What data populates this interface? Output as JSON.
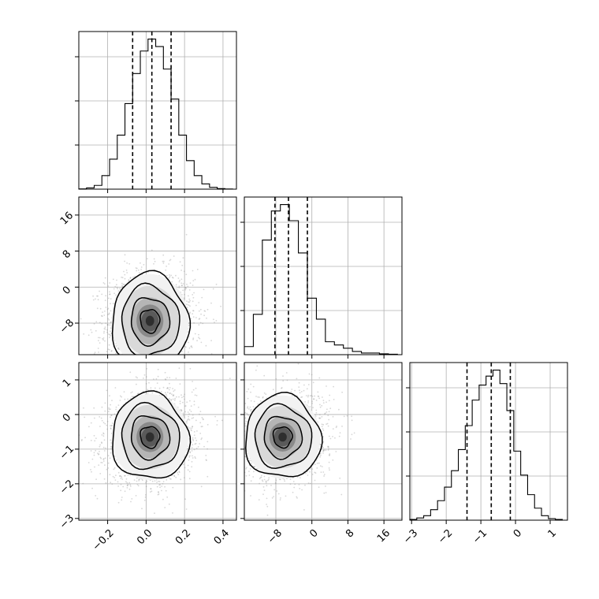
{
  "chart_data": {
    "type": "corner",
    "grid": true,
    "parameters": [
      {
        "index": 0,
        "range": [
          -0.35,
          0.47
        ],
        "ticks": [
          -0.2,
          0.0,
          0.2,
          0.4
        ],
        "tick_labels": [
          "−0.2",
          "0.0",
          "0.2",
          "0.4"
        ]
      },
      {
        "index": 1,
        "range": [
          -15,
          20
        ],
        "ticks": [
          -8,
          0,
          8,
          16
        ],
        "tick_labels": [
          "−8",
          "0",
          "8",
          "16"
        ]
      },
      {
        "index": 2,
        "range": [
          -3.05,
          1.5
        ],
        "ticks": [
          -3,
          -2,
          -1,
          0,
          1
        ],
        "tick_labels": [
          "−3",
          "−2",
          "−1",
          "0",
          "1"
        ]
      }
    ],
    "histograms": [
      {
        "param": 0,
        "edges": [
          -0.35,
          -0.31,
          -0.27,
          -0.23,
          -0.19,
          -0.15,
          -0.11,
          -0.07,
          -0.03,
          0.01,
          0.05,
          0.09,
          0.13,
          0.17,
          0.21,
          0.25,
          0.29,
          0.33,
          0.37,
          0.41,
          0.45
        ],
        "counts": [
          0.2,
          0.8,
          2.5,
          9,
          20,
          36,
          57,
          77,
          92,
          100,
          95,
          80,
          60,
          36,
          19,
          9,
          3.5,
          1.2,
          0.4,
          0.1
        ],
        "quantiles": [
          -0.07,
          0.03,
          0.13
        ]
      },
      {
        "param": 1,
        "edges": [
          -15,
          -13,
          -11,
          -9,
          -7,
          -5,
          -3,
          -1,
          1,
          3,
          5,
          7,
          9,
          11,
          13,
          15,
          17,
          19
        ],
        "counts": [
          5,
          25,
          71,
          89,
          93,
          83,
          63,
          35,
          22,
          8,
          6,
          4,
          2,
          1,
          1,
          0.5,
          0.3,
          0.1
        ],
        "quantiles": [
          -8.2,
          -5.2,
          -1.0
        ]
      },
      {
        "param": 2,
        "edges": [
          -3.05,
          -2.85,
          -2.65,
          -2.45,
          -2.25,
          -2.05,
          -1.85,
          -1.65,
          -1.45,
          -1.25,
          -1.05,
          -0.85,
          -0.65,
          -0.45,
          -0.25,
          -0.05,
          0.15,
          0.35,
          0.55,
          0.75,
          0.95,
          1.15,
          1.35
        ],
        "counts": [
          0.5,
          1.5,
          3,
          7,
          13,
          22,
          33,
          47,
          63,
          80,
          90,
          96,
          100,
          91,
          73,
          46,
          30,
          17,
          8,
          3,
          1,
          0.5
        ],
        "quantiles": [
          -1.4,
          -0.7,
          -0.15
        ]
      }
    ],
    "joint_distributions": [
      {
        "x_param": 0,
        "y_param": 1,
        "center": [
          0.02,
          -7.5
        ],
        "sigma": [
          0.1,
          5.2
        ],
        "correlation": 0.05,
        "skew_y": 0.35
      },
      {
        "x_param": 0,
        "y_param": 2,
        "center": [
          0.02,
          -0.65
        ],
        "sigma": [
          0.1,
          0.62
        ],
        "correlation": 0.12,
        "skew_y": 0.0
      },
      {
        "x_param": 1,
        "y_param": 2,
        "center": [
          -6.5,
          -0.65
        ],
        "sigma": [
          4.2,
          0.6
        ],
        "correlation": 0.08,
        "skew_y": 0.0
      }
    ],
    "contour_levels_sigma": [
      0.5,
      1.0,
      1.5,
      2.0
    ],
    "colors": {
      "line": "#000000",
      "scatter": "#8c8c8c",
      "grid": "#b0b0b0"
    }
  }
}
